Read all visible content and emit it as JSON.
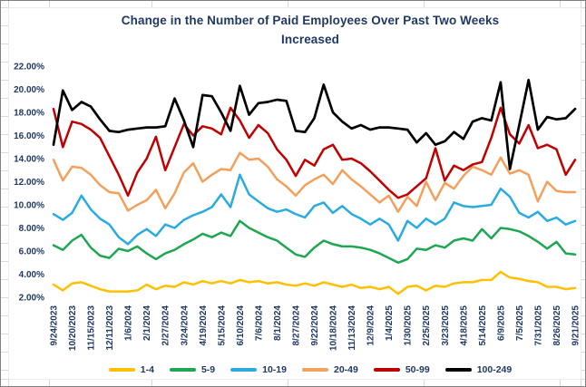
{
  "window": {
    "background": "#ffffff",
    "sheet_gridline_color": "#d9d9d9",
    "text_color": "#1f3864"
  },
  "chart_data": {
    "type": "line",
    "title": "Change in the Number of Paid Employees Over Past Two Weeks",
    "subtitle": "Increased",
    "xlabel": "",
    "ylabel": "",
    "ylim": [
      2,
      22
    ],
    "y_tick_step": 2,
    "grid": false,
    "legend_position": "bottom",
    "y_ticks": [
      "22.00%",
      "20.00%",
      "18.00%",
      "16.00%",
      "14.00%",
      "12.00%",
      "10.00%",
      "8.00%",
      "6.00%",
      "4.00%",
      "2.00%"
    ],
    "x_labels": [
      "9/24/2023",
      "10/20/2023",
      "11/15/2023",
      "12/11/2023",
      "1/6/2024",
      "2/1/2024",
      "2/27/2024",
      "3/24/2024",
      "4/19/2024",
      "5/15/2024",
      "6/10/2024",
      "7/6/2024",
      "8/1/2024",
      "8/27/2024",
      "9/22/2024",
      "10/18/2024",
      "11/13/2024",
      "12/9/2024",
      "1/4/2025",
      "1/30/2025",
      "2/25/2025",
      "3/23/2025",
      "4/18/2025",
      "5/14/2025",
      "6/9/2025",
      "7/5/2025",
      "7/31/2025",
      "8/26/2025",
      "9/21/2025"
    ],
    "points_per_label_interval": 2,
    "series": [
      {
        "name": "1-4",
        "color": "#ffc000",
        "values": [
          3.1,
          2.6,
          3.2,
          3.3,
          3.0,
          2.7,
          2.5,
          2.5,
          2.5,
          2.6,
          3.1,
          2.7,
          3.0,
          2.9,
          3.3,
          3.1,
          3.4,
          3.2,
          3.4,
          3.2,
          3.5,
          3.3,
          3.4,
          3.2,
          3.3,
          3.1,
          3.0,
          3.2,
          3.0,
          3.3,
          3.1,
          2.9,
          3.1,
          2.8,
          2.9,
          2.7,
          2.9,
          2.3,
          2.9,
          3.0,
          2.6,
          3.0,
          2.9,
          3.2,
          3.3,
          3.3,
          3.5,
          3.5,
          4.2,
          3.7,
          3.6,
          3.4,
          3.3,
          2.9,
          2.9,
          2.7,
          2.8
        ]
      },
      {
        "name": "5-9",
        "color": "#1da750",
        "values": [
          6.5,
          6.1,
          6.9,
          7.4,
          6.3,
          5.6,
          5.4,
          6.2,
          6.0,
          6.4,
          5.8,
          5.3,
          5.8,
          6.1,
          6.6,
          7.0,
          7.5,
          7.2,
          7.6,
          7.3,
          8.6,
          8.0,
          7.6,
          7.2,
          6.9,
          6.3,
          5.7,
          5.5,
          6.3,
          6.9,
          6.6,
          6.4,
          6.4,
          6.3,
          6.1,
          5.8,
          5.4,
          5.0,
          5.3,
          6.2,
          6.1,
          6.5,
          6.3,
          6.9,
          7.1,
          6.9,
          7.9,
          7.1,
          8.0,
          7.9,
          7.7,
          7.3,
          6.8,
          6.2,
          6.8,
          5.8,
          5.7
        ]
      },
      {
        "name": "10-19",
        "color": "#29abe2",
        "values": [
          9.2,
          8.7,
          9.3,
          10.8,
          9.6,
          8.8,
          8.3,
          7.2,
          6.6,
          7.4,
          7.9,
          7.3,
          8.3,
          8.0,
          8.7,
          9.1,
          9.4,
          9.8,
          10.9,
          9.8,
          12.6,
          10.9,
          10.3,
          9.7,
          9.4,
          9.6,
          9.2,
          8.9,
          9.9,
          10.2,
          9.3,
          9.9,
          9.2,
          8.8,
          8.3,
          8.8,
          8.3,
          6.9,
          8.6,
          8.0,
          8.8,
          8.3,
          8.8,
          10.2,
          9.9,
          9.8,
          9.9,
          10.0,
          11.4,
          10.7,
          9.3,
          8.9,
          9.4,
          8.6,
          8.9,
          8.3,
          8.6
        ]
      },
      {
        "name": "20-49",
        "color": "#f3a05c",
        "values": [
          13.9,
          12.1,
          13.3,
          13.2,
          12.6,
          11.7,
          11.1,
          11.0,
          9.5,
          10.0,
          10.4,
          11.3,
          9.7,
          11.0,
          12.8,
          13.6,
          12.0,
          12.6,
          13.1,
          13.0,
          14.5,
          13.9,
          14.0,
          13.3,
          12.2,
          11.6,
          10.8,
          11.7,
          12.2,
          12.6,
          11.8,
          13.0,
          12.2,
          11.6,
          10.9,
          10.2,
          10.8,
          9.4,
          10.7,
          9.9,
          12.0,
          10.4,
          11.9,
          11.4,
          12.5,
          13.3,
          13.0,
          12.6,
          14.1,
          12.7,
          13.0,
          12.6,
          10.3,
          12.0,
          11.2,
          11.1,
          11.1
        ]
      },
      {
        "name": "50-99",
        "color": "#c00000",
        "values": [
          18.3,
          15.0,
          17.2,
          17.0,
          16.5,
          15.8,
          14.2,
          12.6,
          10.8,
          12.8,
          14.0,
          15.9,
          13.0,
          15.0,
          17.0,
          16.0,
          16.8,
          16.6,
          16.1,
          18.4,
          17.3,
          15.8,
          16.9,
          16.2,
          14.8,
          13.9,
          12.5,
          13.9,
          13.4,
          14.8,
          15.2,
          13.9,
          14.0,
          13.6,
          12.9,
          12.1,
          11.3,
          10.6,
          10.9,
          11.6,
          12.3,
          14.9,
          12.1,
          13.4,
          13.0,
          13.5,
          13.7,
          15.8,
          18.4,
          16.1,
          15.3,
          16.9,
          14.9,
          15.2,
          14.8,
          12.6,
          13.9
        ]
      },
      {
        "name": "100-249",
        "color": "#000000",
        "values": [
          15.2,
          19.9,
          18.2,
          18.9,
          18.5,
          17.4,
          16.4,
          16.3,
          16.5,
          16.6,
          16.7,
          16.7,
          16.8,
          19.2,
          17.3,
          15.0,
          19.5,
          19.4,
          18.0,
          16.4,
          20.3,
          17.8,
          18.8,
          18.9,
          19.1,
          19.0,
          16.4,
          16.3,
          17.5,
          20.4,
          18.0,
          17.2,
          16.6,
          16.9,
          16.5,
          16.7,
          16.7,
          16.6,
          16.5,
          15.4,
          16.2,
          15.2,
          15.5,
          16.3,
          15.7,
          17.2,
          17.5,
          17.3,
          20.6,
          13.1,
          16.9,
          20.8,
          16.5,
          17.6,
          17.4,
          17.5,
          18.3
        ]
      }
    ]
  }
}
